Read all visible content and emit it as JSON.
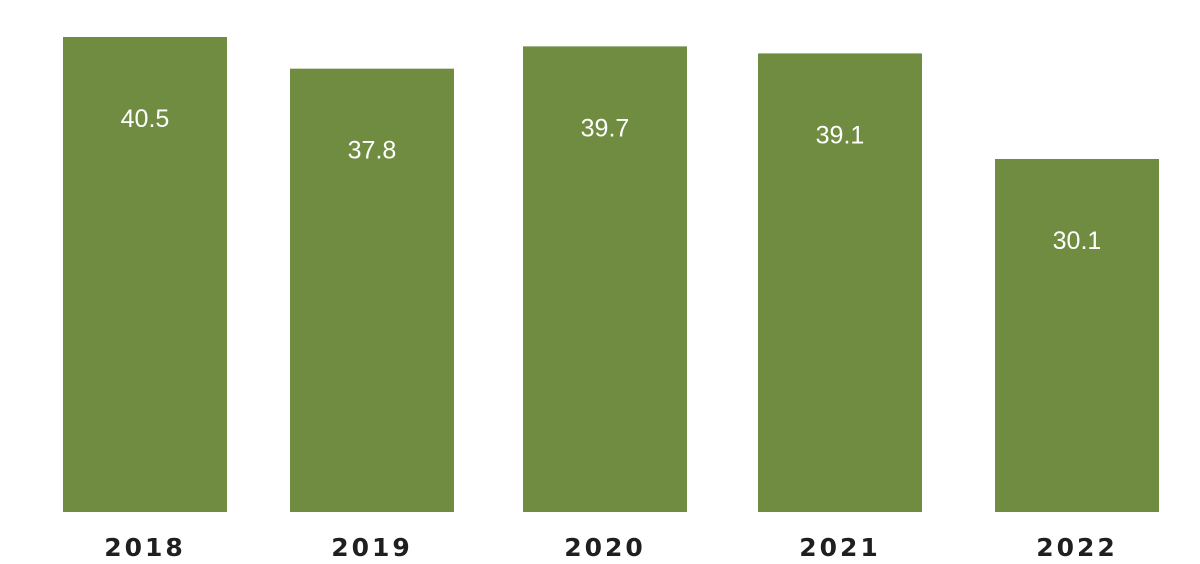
{
  "chart_data": {
    "type": "bar",
    "categories": [
      "2018",
      "2019",
      "2020",
      "2021",
      "2022"
    ],
    "values": [
      40.5,
      37.8,
      39.7,
      39.1,
      30.1
    ],
    "value_labels": [
      "40.5",
      "37.8",
      "39.7",
      "39.1",
      "30.1"
    ],
    "title": "",
    "xlabel": "",
    "ylabel": "",
    "ylim": [
      0,
      40.5
    ],
    "grid": false,
    "legend": "none",
    "bar_color": "#6f8c40",
    "value_label_color": "#ffffff",
    "category_label_color": "#1f1f1f"
  }
}
